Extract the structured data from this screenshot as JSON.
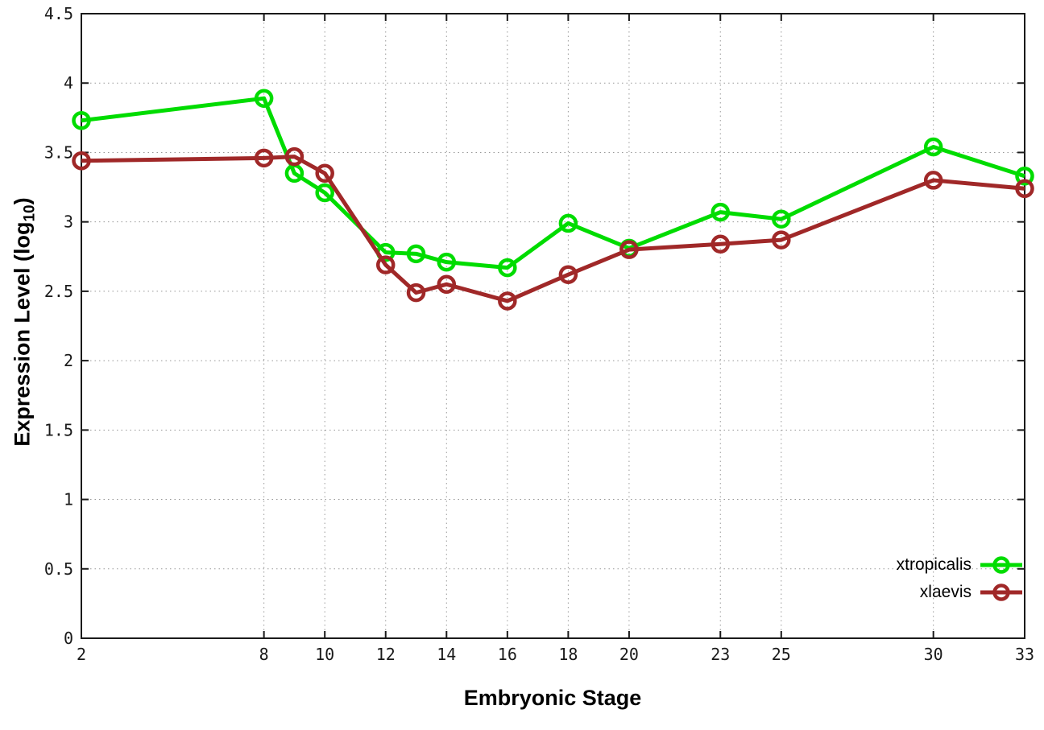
{
  "figure": {
    "background": "#ffffff",
    "axis_color": "#1a1a1a",
    "grid_color": "#999999"
  },
  "chart_data": {
    "type": "line",
    "title": "",
    "xlabel": "Embryonic Stage",
    "ylabel_parts": {
      "pre": "Expression Level (log",
      "sub": "10",
      "post": ")"
    },
    "xlim": [
      2,
      33
    ],
    "ylim": [
      0,
      4.5
    ],
    "xticks": [
      2,
      8,
      10,
      12,
      14,
      16,
      18,
      20,
      23,
      25,
      30,
      33
    ],
    "yticks": [
      0,
      0.5,
      1,
      1.5,
      2,
      2.5,
      3,
      3.5,
      4,
      4.5
    ],
    "grid": "dotted",
    "legend_position": "bottom-right",
    "x": [
      2,
      8,
      9,
      10,
      12,
      13,
      14,
      16,
      18,
      20,
      23,
      25,
      30,
      33
    ],
    "series": [
      {
        "name": "xtropicalis",
        "color": "#00dc00",
        "values": [
          3.73,
          3.89,
          3.35,
          3.21,
          2.78,
          2.77,
          2.71,
          2.67,
          2.99,
          2.81,
          3.07,
          3.02,
          3.54,
          3.33
        ]
      },
      {
        "name": "xlaevis",
        "color": "#a02828",
        "values": [
          3.44,
          3.46,
          3.47,
          3.35,
          2.69,
          2.49,
          2.55,
          2.43,
          2.62,
          2.8,
          2.84,
          2.87,
          3.3,
          3.24
        ]
      }
    ]
  }
}
